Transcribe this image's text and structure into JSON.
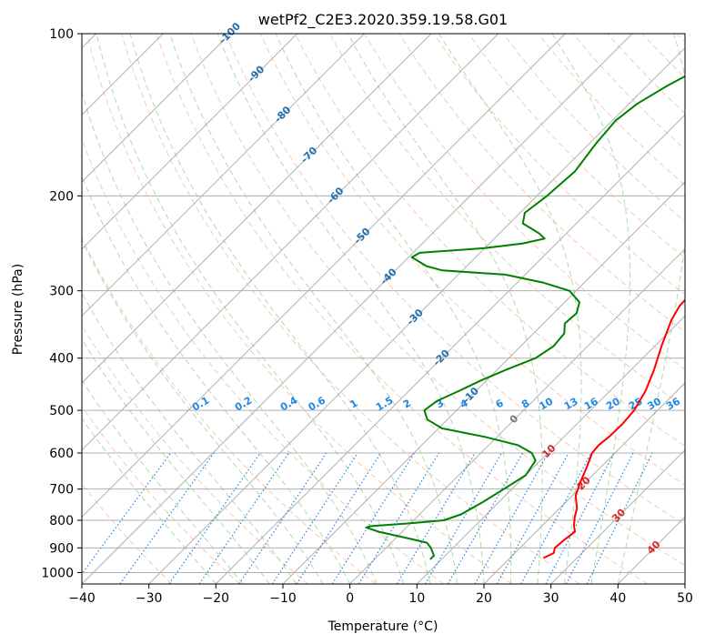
{
  "chart_data": {
    "type": "line",
    "title": "wetPf2_C2E3.2020.359.19.58.G01",
    "xlabel": "Temperature (°C)",
    "ylabel": "Pressure (hPa)",
    "xlim": [
      -40,
      50
    ],
    "ylim": [
      1050,
      100
    ],
    "yscale": "log",
    "skew": "45°",
    "grid": true,
    "x_ticks": [
      -40,
      -30,
      -20,
      -10,
      0,
      10,
      20,
      30,
      40,
      50
    ],
    "y_ticks": [
      100,
      200,
      300,
      400,
      500,
      600,
      700,
      800,
      900,
      1000
    ],
    "series": [
      {
        "name": "",
        "role": "temperature",
        "color": "#ff0000",
        "points": [
          {
            "p": 940,
            "t": 25.0
          },
          {
            "p": 920,
            "t": 25.8
          },
          {
            "p": 900,
            "t": 25.2
          },
          {
            "p": 870,
            "t": 25.4
          },
          {
            "p": 840,
            "t": 25.8
          },
          {
            "p": 820,
            "t": 24.8
          },
          {
            "p": 790,
            "t": 23.6
          },
          {
            "p": 760,
            "t": 22.6
          },
          {
            "p": 720,
            "t": 20.5
          },
          {
            "p": 680,
            "t": 19.2
          },
          {
            "p": 640,
            "t": 18.0
          },
          {
            "p": 600,
            "t": 16.6
          },
          {
            "p": 580,
            "t": 16.4
          },
          {
            "p": 560,
            "t": 16.7
          },
          {
            "p": 530,
            "t": 16.8
          },
          {
            "p": 500,
            "t": 16.5
          },
          {
            "p": 460,
            "t": 15.3
          },
          {
            "p": 420,
            "t": 13.4
          },
          {
            "p": 380,
            "t": 11.0
          },
          {
            "p": 340,
            "t": 8.6
          },
          {
            "p": 320,
            "t": 7.7
          },
          {
            "p": 300,
            "t": 7.5
          },
          {
            "p": 285,
            "t": 8.5
          },
          {
            "p": 270,
            "t": 10.7
          },
          {
            "p": 255,
            "t": 12.8
          },
          {
            "p": 240,
            "t": 12.4
          },
          {
            "p": 220,
            "t": 9.8
          },
          {
            "p": 200,
            "t": 6.5
          },
          {
            "p": 180,
            "t": 3.9
          },
          {
            "p": 160,
            "t": 1.6
          },
          {
            "p": 150,
            "t": 0.8
          },
          {
            "p": 140,
            "t": 0.4
          },
          {
            "p": 130,
            "t": 0.1
          },
          {
            "p": 120,
            "t": -0.9
          },
          {
            "p": 115,
            "t": -1.7
          },
          {
            "p": 110,
            "t": -1.9
          },
          {
            "p": 105,
            "t": -1.3
          },
          {
            "p": 100,
            "t": -0.4
          }
        ]
      },
      {
        "name": "",
        "role": "dewpoint",
        "color": "#008000",
        "points": [
          {
            "p": 945,
            "t": 8.3
          },
          {
            "p": 930,
            "t": 8.3
          },
          {
            "p": 900,
            "t": 6.7
          },
          {
            "p": 880,
            "t": 5.3
          },
          {
            "p": 860,
            "t": 1.0
          },
          {
            "p": 840,
            "t": -3.5
          },
          {
            "p": 825,
            "t": -6.0
          },
          {
            "p": 820,
            "t": -5.5
          },
          {
            "p": 810,
            "t": 0.0
          },
          {
            "p": 800,
            "t": 4.5
          },
          {
            "p": 780,
            "t": 6.2
          },
          {
            "p": 740,
            "t": 7.6
          },
          {
            "p": 700,
            "t": 8.8
          },
          {
            "p": 660,
            "t": 10.0
          },
          {
            "p": 620,
            "t": 9.3
          },
          {
            "p": 600,
            "t": 7.6
          },
          {
            "p": 580,
            "t": 4.3
          },
          {
            "p": 560,
            "t": -1.8
          },
          {
            "p": 540,
            "t": -9.5
          },
          {
            "p": 520,
            "t": -13.0
          },
          {
            "p": 500,
            "t": -14.8
          },
          {
            "p": 480,
            "t": -14.3
          },
          {
            "p": 460,
            "t": -12.5
          },
          {
            "p": 440,
            "t": -10.8
          },
          {
            "p": 420,
            "t": -8.6
          },
          {
            "p": 400,
            "t": -6.0
          },
          {
            "p": 380,
            "t": -5.1
          },
          {
            "p": 360,
            "t": -5.4
          },
          {
            "p": 345,
            "t": -6.8
          },
          {
            "p": 330,
            "t": -6.6
          },
          {
            "p": 315,
            "t": -7.8
          },
          {
            "p": 300,
            "t": -11.0
          },
          {
            "p": 290,
            "t": -16.0
          },
          {
            "p": 280,
            "t": -23.0
          },
          {
            "p": 275,
            "t": -33.0
          },
          {
            "p": 270,
            "t": -36.0
          },
          {
            "p": 260,
            "t": -39.5
          },
          {
            "p": 255,
            "t": -39.0
          },
          {
            "p": 250,
            "t": -30.0
          },
          {
            "p": 245,
            "t": -25.0
          },
          {
            "p": 240,
            "t": -22.5
          },
          {
            "p": 235,
            "t": -24.0
          },
          {
            "p": 225,
            "t": -28.0
          },
          {
            "p": 215,
            "t": -29.3
          },
          {
            "p": 200,
            "t": -28.5
          },
          {
            "p": 180,
            "t": -28.0
          },
          {
            "p": 160,
            "t": -29.0
          },
          {
            "p": 145,
            "t": -29.5
          },
          {
            "p": 135,
            "t": -28.8
          },
          {
            "p": 125,
            "t": -27.0
          },
          {
            "p": 115,
            "t": -24.5
          },
          {
            "p": 100,
            "t": -20.5
          }
        ]
      }
    ],
    "mixing_ratio_labels": [
      "0.1",
      "0.2",
      "0.4",
      "0.6",
      "1",
      "1.5",
      "2",
      "3",
      "4",
      "6",
      "8",
      "10",
      "13",
      "16",
      "20",
      "25",
      "30",
      "36"
    ],
    "mixing_ratio_values": [
      0.1,
      0.2,
      0.4,
      0.6,
      1,
      1.5,
      2,
      3,
      4,
      6,
      8,
      10,
      13,
      16,
      20,
      25,
      30,
      36
    ],
    "isotherm_labels": [
      "-100",
      "-90",
      "-80",
      "-70",
      "-60",
      "-50",
      "-40",
      "-30",
      "-20",
      "-10",
      "0",
      "10",
      "20",
      "30",
      "40"
    ],
    "isotherm_values": [
      -100,
      -90,
      -80,
      -70,
      -60,
      -50,
      -40,
      -30,
      -20,
      -10,
      0,
      10,
      20,
      30,
      40
    ],
    "colors": {
      "temperature": "#ff0000",
      "dewpoint": "#008000",
      "dry_adiabats": "#f4a582",
      "moist_adiabats": "#7fbf7b",
      "mixing_ratio": "#1e88e5",
      "isotherm_cold": "#1f6fb0",
      "isotherm_zero": "#777777",
      "isotherm_warm": "#d62728",
      "grid": "#b0b0b0"
    }
  }
}
